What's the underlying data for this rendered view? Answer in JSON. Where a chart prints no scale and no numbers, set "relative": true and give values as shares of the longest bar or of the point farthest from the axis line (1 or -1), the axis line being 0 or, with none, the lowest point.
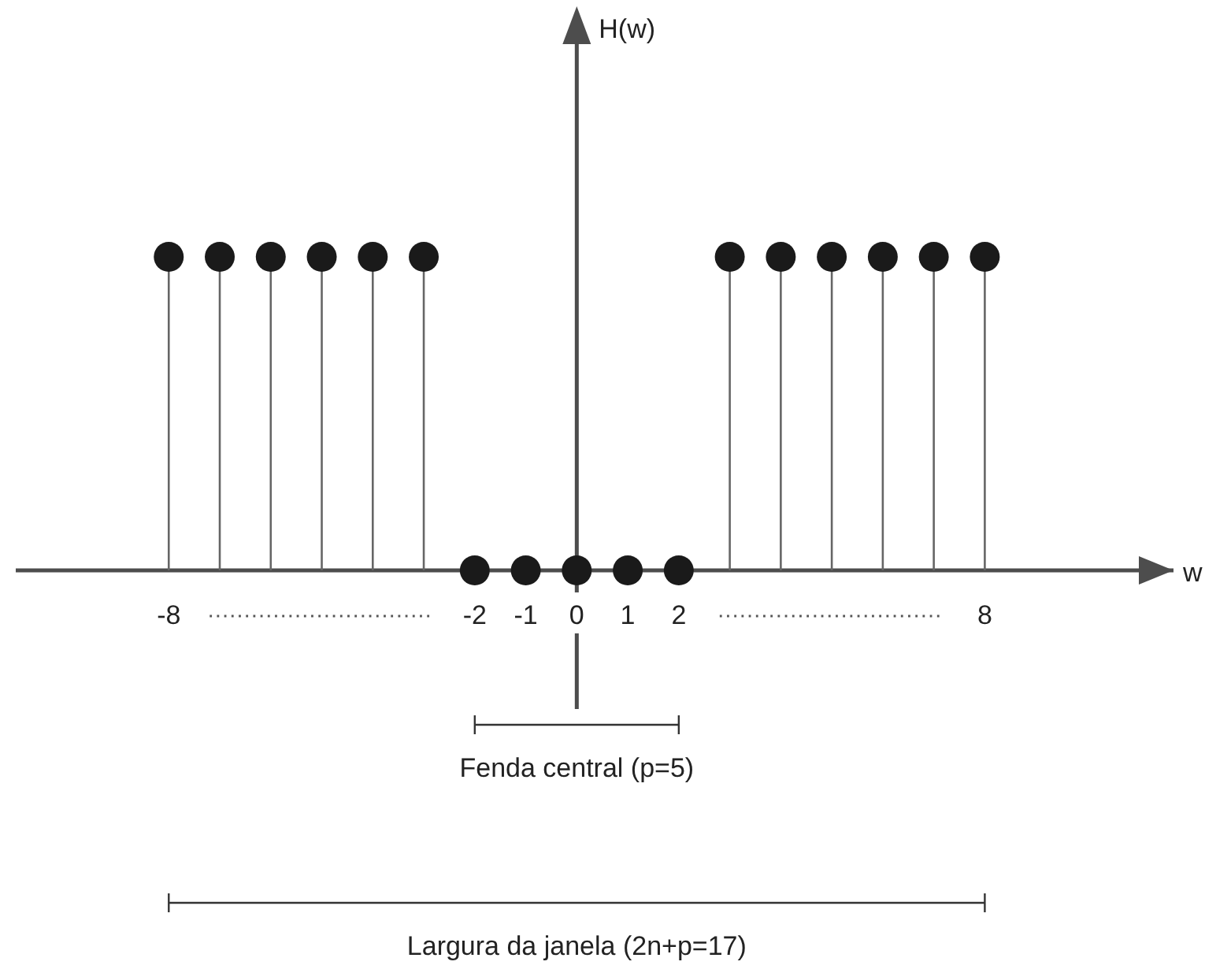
{
  "chart_data": {
    "type": "lollipop",
    "relative": true,
    "xlabel": "w",
    "x": [
      -8,
      -7,
      -6,
      -5,
      -4,
      -3,
      -2,
      -1,
      0,
      1,
      2,
      3,
      4,
      5,
      6,
      7,
      8
    ],
    "series": [
      {
        "color": "#1a1a1a",
        "values": [
          1,
          1,
          1,
          1,
          1,
          1,
          0,
          0,
          0,
          0,
          0,
          1,
          1,
          1,
          1,
          1,
          1
        ]
      }
    ],
    "xlim": [
      -11,
      11.7
    ],
    "xticks": [
      -8,
      -2,
      -1,
      0,
      1,
      2,
      8
    ],
    "marker": "circle",
    "annotations": [
      "H(w)",
      "Fenda central (p=5)",
      "Largura da janela (2n+p=17)"
    ]
  }
}
